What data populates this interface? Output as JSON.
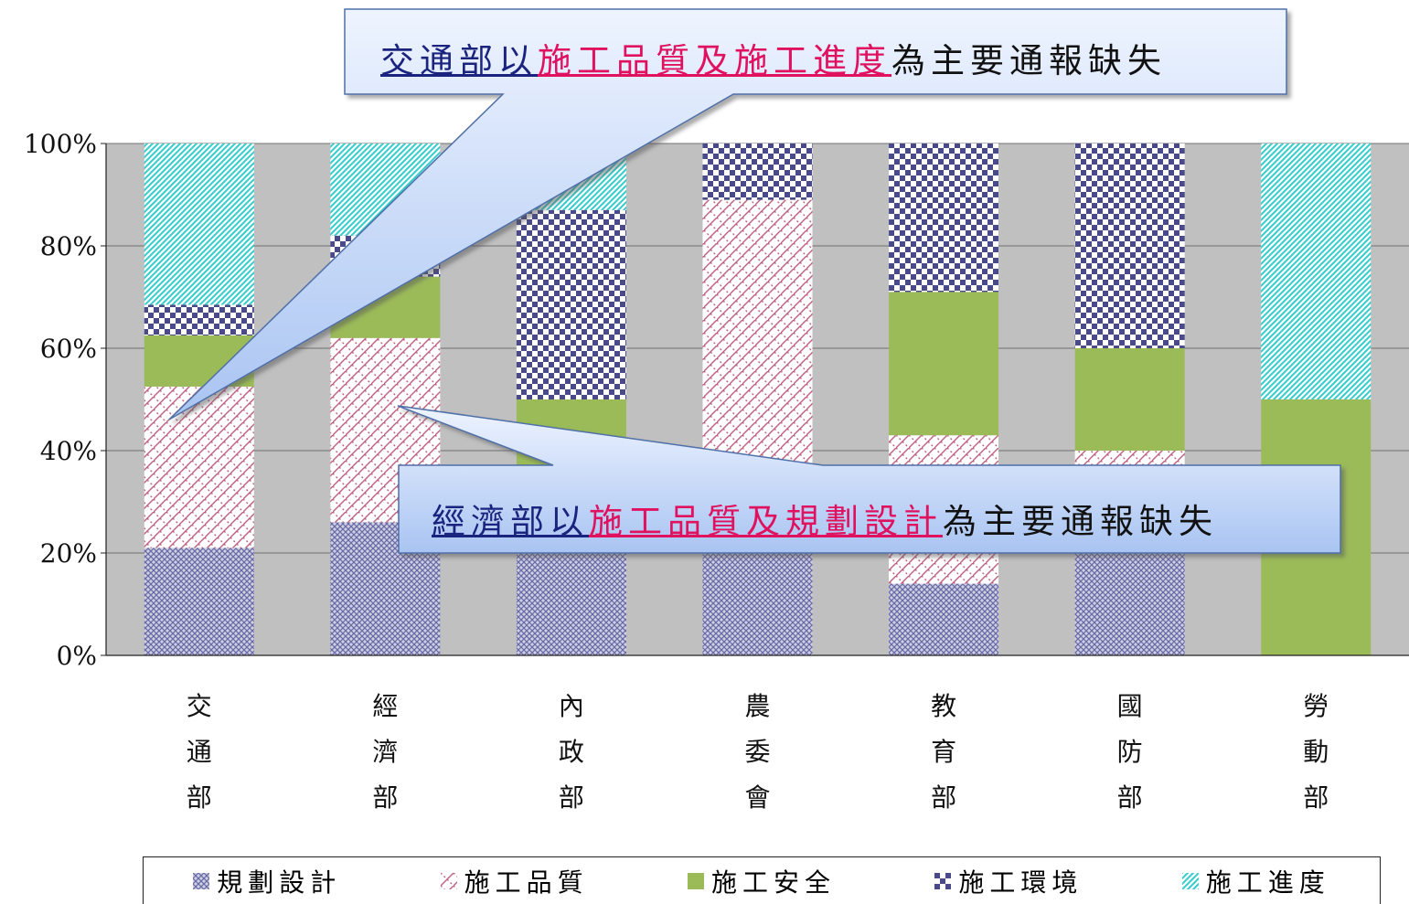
{
  "chart_data": {
    "type": "bar",
    "stacked": true,
    "categories": [
      "交通部",
      "經濟部",
      "內政部",
      "農委會",
      "教育部",
      "國防部",
      "勞動部"
    ],
    "series": [
      {
        "name": "規劃設計",
        "color": "#8080b0",
        "pattern": "diamond-grid",
        "values": [
          21,
          26,
          21,
          21,
          14,
          21,
          0
        ]
      },
      {
        "name": "施工品質",
        "color": "#c06080",
        "pattern": "crosshatch",
        "values": [
          31.5,
          36,
          16,
          68,
          29,
          19,
          0
        ]
      },
      {
        "name": "施工安全",
        "color": "#9bbb59",
        "pattern": "solid",
        "values": [
          10,
          12,
          13,
          0,
          28,
          20,
          50
        ]
      },
      {
        "name": "施工環境",
        "color": "#4a4a8a",
        "pattern": "checker",
        "values": [
          6,
          8,
          37,
          11,
          29,
          40,
          0
        ]
      },
      {
        "name": "施工進度",
        "color": "#33cccc",
        "pattern": "diagonal",
        "values": [
          31.5,
          18,
          13,
          0,
          0,
          0,
          50
        ]
      }
    ],
    "y_ticks": [
      "0%",
      "20%",
      "40%",
      "60%",
      "80%",
      "100%"
    ],
    "ylim": [
      0,
      100
    ],
    "plot_background": "#c0c0c0",
    "grid": true,
    "legend_position": "bottom"
  },
  "callouts": [
    {
      "dept": "交通部以",
      "key": "施工品質及施工進度",
      "rest": "為主要通報缺失"
    },
    {
      "dept": "經濟部以",
      "key": "施工品質及規劃設計",
      "rest": "為主要通報缺失"
    }
  ]
}
